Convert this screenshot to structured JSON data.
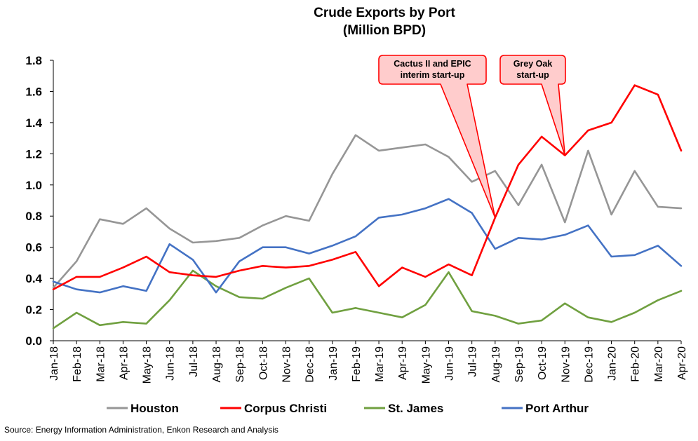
{
  "chart_data": {
    "type": "line",
    "title": "Crude Exports by Port",
    "subtitle": "(Million BPD)",
    "xlabel": "",
    "ylabel": "",
    "ylim": [
      0,
      1.8
    ],
    "yticks": [
      "0.0",
      "0.2",
      "0.4",
      "0.6",
      "0.8",
      "1.0",
      "1.2",
      "1.4",
      "1.6",
      "1.8"
    ],
    "grid": false,
    "legend_position": "bottom",
    "categories": [
      "Jan-18",
      "Feb-18",
      "Mar-18",
      "Apr-18",
      "May-18",
      "Jun-18",
      "Jul-18",
      "Aug-18",
      "Sep-18",
      "Oct-18",
      "Nov-18",
      "Dec-18",
      "Jan-19",
      "Feb-19",
      "Mar-19",
      "Apr-19",
      "May-19",
      "Jun-19",
      "Jul-19",
      "Aug-19",
      "Sep-19",
      "Oct-19",
      "Nov-19",
      "Dec-19",
      "Jan-20",
      "Feb-20",
      "Mar-20",
      "Apr-20"
    ],
    "series": [
      {
        "name": "Houston",
        "color": "#969696",
        "values": [
          0.34,
          0.51,
          0.78,
          0.75,
          0.85,
          0.72,
          0.63,
          0.64,
          0.66,
          0.74,
          0.8,
          0.77,
          1.07,
          1.32,
          1.22,
          1.24,
          1.26,
          1.18,
          1.02,
          1.09,
          0.87,
          1.13,
          0.76,
          1.22,
          0.81,
          1.09,
          0.86,
          0.85
        ]
      },
      {
        "name": "Corpus Christi",
        "color": "#ff0000",
        "values": [
          0.33,
          0.41,
          0.41,
          0.47,
          0.54,
          0.44,
          0.42,
          0.41,
          0.45,
          0.48,
          0.47,
          0.48,
          0.52,
          0.57,
          0.35,
          0.47,
          0.41,
          0.49,
          0.42,
          0.79,
          1.13,
          1.31,
          1.19,
          1.35,
          1.4,
          1.64,
          1.58,
          1.22
        ]
      },
      {
        "name": "St. James",
        "color": "#70a040",
        "values": [
          0.08,
          0.18,
          0.1,
          0.12,
          0.11,
          0.26,
          0.45,
          0.35,
          0.28,
          0.27,
          0.34,
          0.4,
          0.18,
          0.21,
          0.18,
          0.15,
          0.23,
          0.44,
          0.19,
          0.16,
          0.11,
          0.13,
          0.24,
          0.15,
          0.12,
          0.18,
          0.26,
          0.32
        ]
      },
      {
        "name": "Port Arthur",
        "color": "#4472c4",
        "values": [
          0.38,
          0.33,
          0.31,
          0.35,
          0.32,
          0.62,
          0.52,
          0.31,
          0.51,
          0.6,
          0.6,
          0.56,
          0.61,
          0.67,
          0.79,
          0.81,
          0.85,
          0.91,
          0.82,
          0.59,
          0.66,
          0.65,
          0.68,
          0.74,
          0.54,
          0.55,
          0.61,
          0.48
        ]
      }
    ],
    "annotations": [
      {
        "lines": [
          "Cactus II and EPIC",
          "interim start-up"
        ],
        "points_to": "Aug-19",
        "series": "Corpus Christi"
      },
      {
        "lines": [
          "Grey Oak",
          "start-up"
        ],
        "points_to": "Nov-19",
        "series": "Corpus Christi"
      }
    ],
    "source": "Source:  Energy Information Administration, Enkon Research and Analysis"
  }
}
